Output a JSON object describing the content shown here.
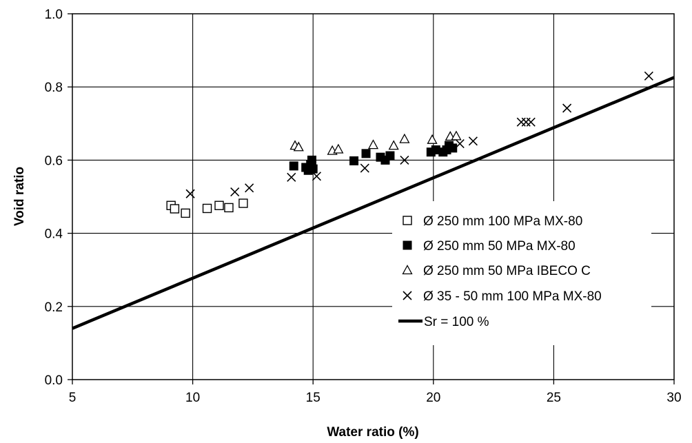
{
  "chart_data": {
    "type": "scatter",
    "xlabel": "Water ratio (%)",
    "ylabel": "Void ratio",
    "xlim": [
      5,
      30
    ],
    "ylim": [
      0.0,
      1.0
    ],
    "x_ticks": [
      "5",
      "10",
      "15",
      "20",
      "25",
      "30"
    ],
    "y_ticks": [
      "0.0",
      "0.2",
      "0.4",
      "0.6",
      "0.8",
      "1.0"
    ],
    "grid": true,
    "legend_position": "right",
    "series": [
      {
        "name": "Ø 250 mm 100 MPa MX-80",
        "marker": "open-square",
        "color": "#000000",
        "points": [
          [
            9.1,
            0.476
          ],
          [
            9.25,
            0.467
          ],
          [
            9.7,
            0.455
          ],
          [
            10.6,
            0.468
          ],
          [
            11.1,
            0.476
          ],
          [
            11.5,
            0.47
          ],
          [
            12.1,
            0.482
          ]
        ]
      },
      {
        "name": "Ø 250 mm 50 MPa MX-80",
        "marker": "filled-square",
        "color": "#000000",
        "points": [
          [
            14.2,
            0.584
          ],
          [
            14.7,
            0.58
          ],
          [
            14.8,
            0.572
          ],
          [
            14.9,
            0.588
          ],
          [
            14.95,
            0.6
          ],
          [
            15.0,
            0.576
          ],
          [
            16.7,
            0.598
          ],
          [
            17.2,
            0.618
          ],
          [
            17.8,
            0.608
          ],
          [
            18.0,
            0.6
          ],
          [
            18.2,
            0.612
          ],
          [
            19.9,
            0.622
          ],
          [
            20.1,
            0.628
          ],
          [
            20.4,
            0.622
          ],
          [
            20.55,
            0.628
          ],
          [
            20.65,
            0.64
          ],
          [
            20.8,
            0.633
          ]
        ]
      },
      {
        "name": "Ø 250 mm 50 MPa IBECO C",
        "marker": "open-triangle",
        "color": "#000000",
        "points": [
          [
            14.25,
            0.64
          ],
          [
            14.4,
            0.636
          ],
          [
            15.8,
            0.626
          ],
          [
            16.05,
            0.63
          ],
          [
            17.5,
            0.642
          ],
          [
            18.35,
            0.64
          ],
          [
            18.8,
            0.658
          ],
          [
            19.95,
            0.656
          ],
          [
            20.7,
            0.665
          ],
          [
            20.95,
            0.666
          ]
        ]
      },
      {
        "name": "Ø 35 - 50 mm 100 MPa MX-80",
        "marker": "x",
        "color": "#000000",
        "points": [
          [
            9.9,
            0.508
          ],
          [
            11.75,
            0.513
          ],
          [
            12.35,
            0.524
          ],
          [
            14.1,
            0.553
          ],
          [
            15.15,
            0.556
          ],
          [
            17.15,
            0.578
          ],
          [
            18.8,
            0.6
          ],
          [
            21.1,
            0.645
          ],
          [
            21.65,
            0.652
          ],
          [
            23.65,
            0.704
          ],
          [
            23.85,
            0.704
          ],
          [
            24.05,
            0.704
          ],
          [
            25.55,
            0.742
          ],
          [
            28.95,
            0.83
          ]
        ]
      },
      {
        "name": "Sr = 100 %",
        "type": "line",
        "color": "#000000",
        "points": [
          [
            5,
            0.14
          ],
          [
            30,
            0.826
          ]
        ]
      }
    ]
  }
}
